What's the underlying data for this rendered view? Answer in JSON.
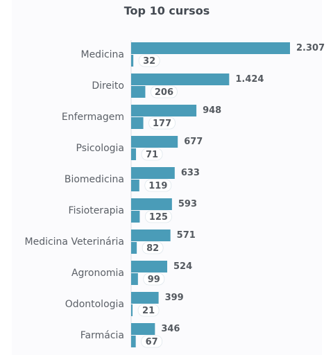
{
  "chart_data": {
    "type": "bar",
    "orientation": "horizontal",
    "title": "Top 10 cursos",
    "categories": [
      "Medicina",
      "Direito",
      "Enfermagem",
      "Psicologia",
      "Biomedicina",
      "Fisioterapia",
      "Medicina Veterinária",
      "Agronomia",
      "Odontologia",
      "Farmácia"
    ],
    "series": [
      {
        "values": [
          2307,
          1424,
          948,
          677,
          633,
          593,
          571,
          524,
          399,
          346
        ],
        "labels": [
          "2.307",
          "1.424",
          "948",
          "677",
          "633",
          "593",
          "571",
          "524",
          "399",
          "346"
        ],
        "color": "#4a9cb8"
      },
      {
        "values": [
          32,
          206,
          177,
          71,
          119,
          125,
          82,
          99,
          21,
          67
        ],
        "labels": [
          "32",
          "206",
          "177",
          "71",
          "119",
          "125",
          "82",
          "99",
          "21",
          "67"
        ],
        "color": "#4a9cb8"
      }
    ],
    "xlabel": "",
    "ylabel": "",
    "grid": false,
    "legend": "none"
  }
}
